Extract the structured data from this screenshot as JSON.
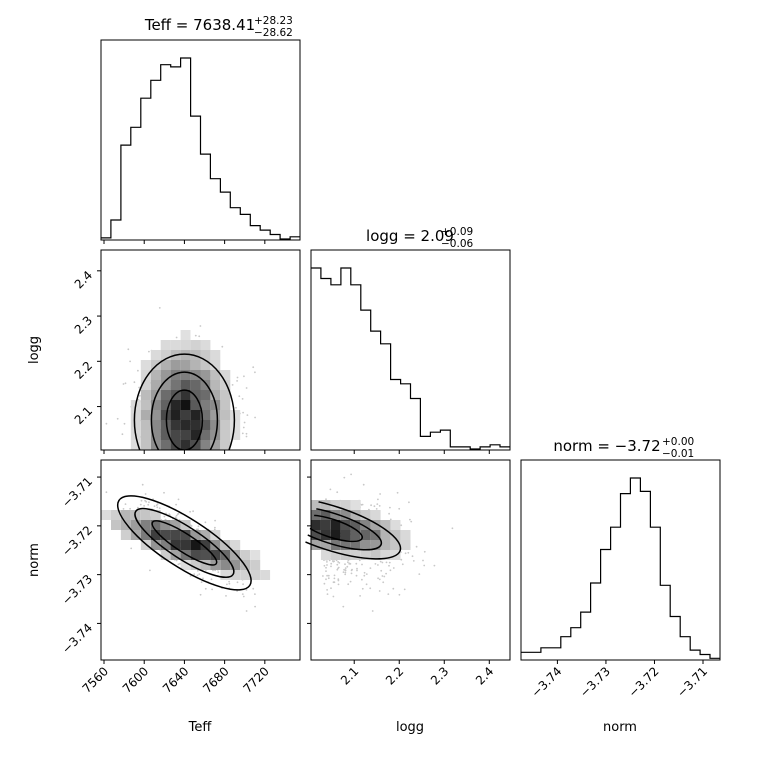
{
  "chart_data": {
    "type": "corner",
    "parameters": [
      "Teff",
      "logg",
      "norm"
    ],
    "titles": [
      {
        "param": "Teff",
        "label": "Teff = 7638.41",
        "sup": "+28.23",
        "sub": "−28.62"
      },
      {
        "param": "logg",
        "label": "logg = 2.09",
        "sup": "+0.09",
        "sub": "−0.06"
      },
      {
        "param": "norm",
        "label": "norm = −3.72",
        "sup": "+0.00",
        "sub": "−0.01"
      }
    ],
    "ranges": {
      "Teff": [
        7557,
        7755
      ],
      "logg": [
        2.004,
        2.446
      ],
      "norm": [
        -3.7475,
        -3.7065
      ]
    },
    "ticks": {
      "Teff": [
        7560,
        7600,
        7640,
        7680,
        7720
      ],
      "logg": [
        2.1,
        2.2,
        2.3,
        2.4
      ],
      "norm": [
        -3.74,
        -3.73,
        -3.72,
        -3.71
      ]
    },
    "tick_labels": {
      "Teff": [
        "7560",
        "7600",
        "7640",
        "7680",
        "7720"
      ],
      "logg": [
        "2.1",
        "2.2",
        "2.3",
        "2.4"
      ],
      "norm": [
        "−3.74",
        "−3.73",
        "−3.72",
        "−3.71"
      ]
    },
    "histograms": {
      "Teff": {
        "bin_start": 7557,
        "bin_width": 9.9,
        "counts": [
          0.5,
          8.5,
          42,
          50,
          63,
          71,
          78,
          77,
          81,
          55,
          38,
          27,
          21,
          14,
          11,
          6,
          4,
          2,
          0,
          1
        ]
      },
      "logg": {
        "bin_start": 2.004,
        "bin_width": 0.0221,
        "counts": [
          86,
          81,
          78,
          86,
          78,
          66,
          56,
          50,
          33,
          31,
          24,
          6,
          8,
          9,
          1,
          1,
          0,
          1,
          2,
          1
        ]
      },
      "norm": {
        "bin_start": -3.7475,
        "bin_width": 0.00205,
        "counts": [
          3,
          3,
          5,
          5,
          10,
          14,
          21,
          34,
          49,
          59,
          74,
          81,
          75,
          59,
          33,
          19,
          10,
          4,
          2,
          0.3
        ]
      }
    },
    "contour_peaks": {
      "logg_vs_Teff": {
        "Teff": 7640,
        "logg": 2.07
      },
      "norm_vs_Teff": {
        "Teff": 7640,
        "norm": -3.7235
      },
      "norm_vs_logg": {
        "logg": 2.05,
        "norm": -3.7205
      }
    }
  }
}
